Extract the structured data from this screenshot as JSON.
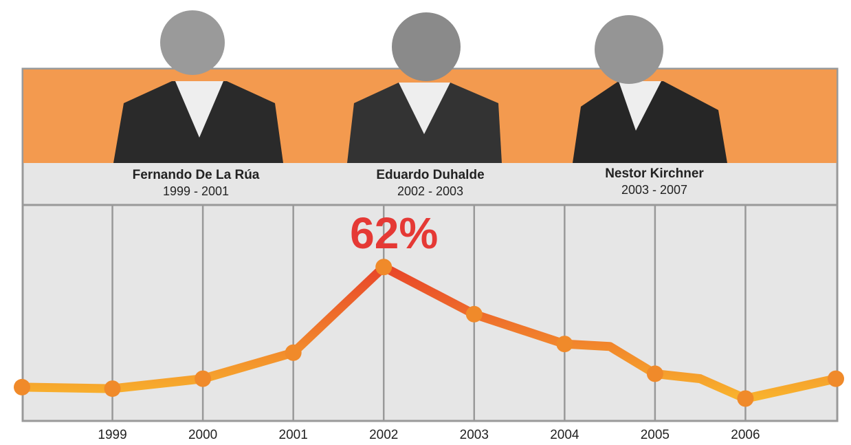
{
  "presidents": [
    {
      "name": "Fernando De La Rúa",
      "term": "1999 - 2001"
    },
    {
      "name": "Eduardo Duhalde",
      "term": "2002 - 2003"
    },
    {
      "name": "Nestor Kirchner",
      "term": "2003 - 2007"
    }
  ],
  "chart_data": {
    "type": "line",
    "x": [
      1998,
      1999,
      2000,
      2001,
      2002,
      2003,
      2004,
      2004.5,
      2005,
      2005.5,
      2006,
      2007
    ],
    "values": [
      13.6,
      13,
      17,
      27.5,
      62,
      43,
      31,
      30,
      19,
      17,
      9,
      17
    ],
    "value_labels": [
      null,
      null,
      null,
      null,
      "62%",
      null,
      null,
      null,
      null,
      null,
      null,
      null
    ],
    "xlim": [
      1998,
      2007
    ],
    "xticks": [
      1999,
      2000,
      2001,
      2002,
      2003,
      2004,
      2005,
      2006
    ],
    "ylim": [
      0,
      87
    ],
    "grid": true,
    "colors": [
      "#fbc62e",
      "#e8452a"
    ],
    "marker_color": "#f08a2a",
    "label_color": "#e53935"
  }
}
